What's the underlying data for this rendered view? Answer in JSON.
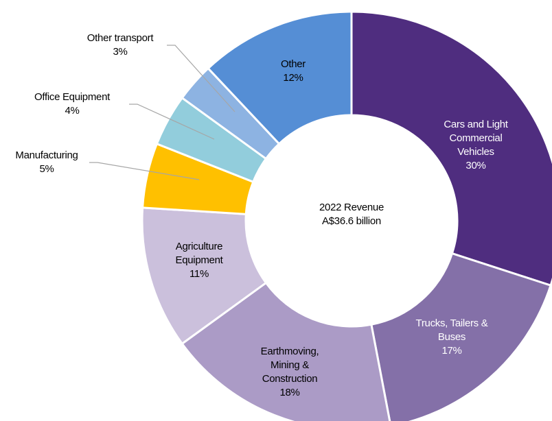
{
  "chart_data": {
    "type": "donut",
    "center_label": "2022 Revenue\nA$36.6 billion",
    "categories": [
      "Cars and Light\nCommercial\nVehicles",
      "Trucks, Tailers & Buses",
      "Earthmoving,\nMining &\nConstruction",
      "Agriculture\nEquipment",
      "Manufacturing",
      "Office Equipment",
      "Other transport",
      "Other"
    ],
    "values": [
      30,
      17,
      18,
      11,
      5,
      4,
      3,
      12
    ],
    "value_labels": [
      "30%",
      "17%",
      "18%",
      "11%",
      "5%",
      "4%",
      "3%",
      "12%"
    ],
    "colors": [
      "#4f2d7f",
      "#8470a8",
      "#ab9bc6",
      "#cbc0dc",
      "#ffc000",
      "#92cddc",
      "#8db3e2",
      "#558ed5"
    ]
  }
}
